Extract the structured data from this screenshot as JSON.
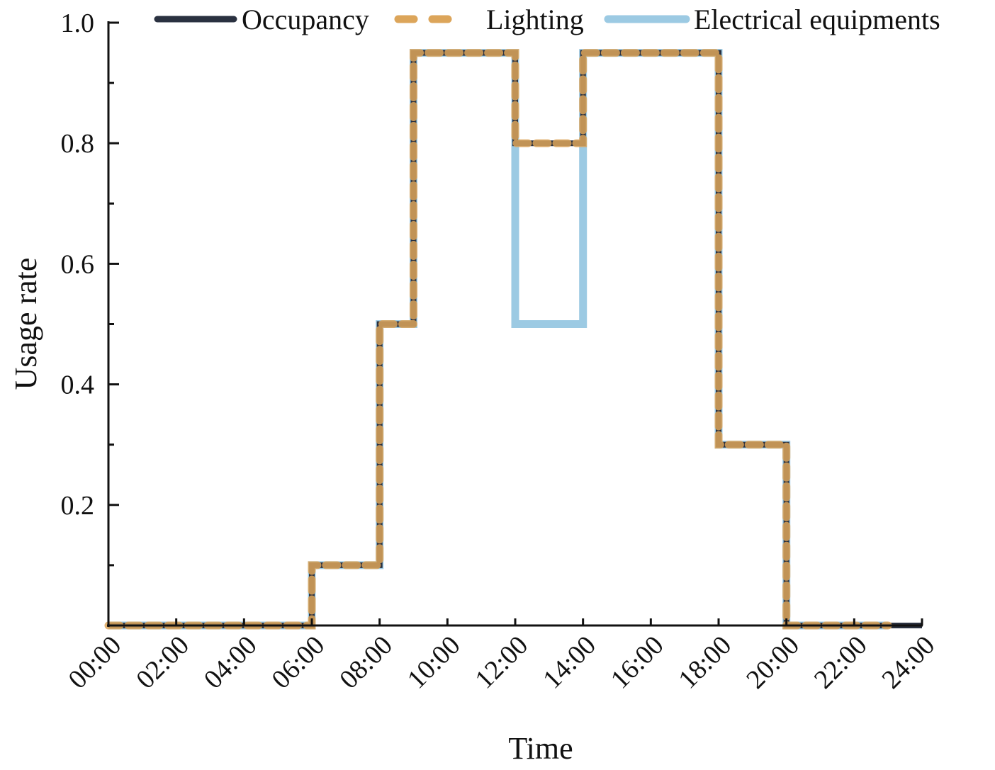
{
  "chart_data": {
    "type": "line",
    "step": "post",
    "xlabel": "Time",
    "ylabel": "Usage rate",
    "xlim": [
      0,
      24
    ],
    "ylim": [
      0,
      1.0
    ],
    "grid": false,
    "legend_position": "top",
    "x_ticks": [
      0,
      2,
      4,
      6,
      8,
      10,
      12,
      14,
      16,
      18,
      20,
      22,
      24
    ],
    "x_tick_labels": [
      "00:00",
      "02:00",
      "04:00",
      "06:00",
      "08:00",
      "10:00",
      "12:00",
      "14:00",
      "16:00",
      "18:00",
      "20:00",
      "22:00",
      "24:00"
    ],
    "y_ticks": [
      0.2,
      0.4,
      0.6,
      0.8,
      1.0
    ],
    "y_tick_labels": [
      "0.2",
      "0.4",
      "0.6",
      "0.8",
      "1.0"
    ],
    "y_minor_ticks": [
      0.1,
      0.3,
      0.5,
      0.7,
      0.9
    ],
    "series": [
      {
        "name": "Occupancy",
        "color": "#2a3140",
        "style": "solid",
        "x": [
          0,
          6,
          8,
          9,
          12,
          14,
          18,
          20,
          24
        ],
        "values": [
          0,
          0.1,
          0.5,
          0.95,
          0.8,
          0.95,
          0.3,
          0,
          0
        ]
      },
      {
        "name": "Lighting",
        "color": "#dca55a",
        "style": "dashed",
        "x": [
          0,
          6,
          8,
          9,
          12,
          14,
          18,
          20,
          23
        ],
        "values": [
          0,
          0.1,
          0.5,
          0.95,
          0.8,
          0.95,
          0.3,
          0,
          0
        ]
      },
      {
        "name": "Electrical equipments",
        "color": "#9ccae3",
        "style": "solid",
        "x": [
          0,
          6,
          8,
          9,
          12,
          14,
          18,
          20,
          23
        ],
        "values": [
          0,
          0.1,
          0.5,
          0.95,
          0.5,
          0.95,
          0.3,
          0,
          0
        ]
      }
    ]
  }
}
